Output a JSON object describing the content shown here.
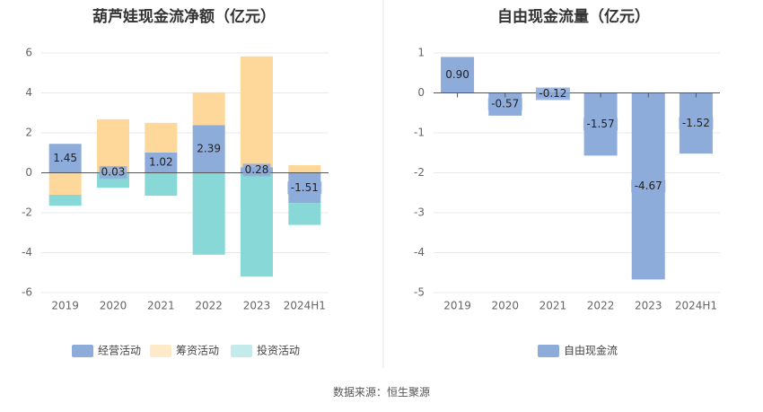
{
  "source_text": "数据来源：恒生聚源",
  "colors": {
    "operating": "#8eacda",
    "financing": "#fed89a",
    "investing": "#88d8d8",
    "free_cash": "#8eacda"
  },
  "chart_data": [
    {
      "type": "bar",
      "stacked": true,
      "title": "葫芦娃现金流净额（亿元）",
      "categories": [
        "2019",
        "2020",
        "2021",
        "2022",
        "2023",
        "2024H1"
      ],
      "ylim": [
        -6,
        6
      ],
      "yticks": [
        6,
        4,
        2,
        0,
        -2,
        -4,
        -6
      ],
      "grid": true,
      "legend_position": "bottom",
      "series": [
        {
          "name": "经营活动",
          "values": [
            1.45,
            0.03,
            1.02,
            2.39,
            0.28,
            -1.51
          ],
          "labels": [
            "1.45",
            "0.03",
            "1.02",
            "2.39",
            "0.28",
            "-1.51"
          ]
        },
        {
          "name": "筹资活动",
          "values": [
            -1.1,
            2.65,
            1.48,
            1.64,
            5.55,
            0.38
          ]
        },
        {
          "name": "投资活动",
          "values": [
            -0.55,
            -0.75,
            -1.15,
            -4.1,
            -5.2,
            -1.1
          ]
        }
      ]
    },
    {
      "type": "bar",
      "title": "自由现金流量（亿元）",
      "categories": [
        "2019",
        "2020",
        "2021",
        "2022",
        "2023",
        "2024H1"
      ],
      "ylim": [
        -5,
        1
      ],
      "yticks": [
        1,
        0,
        -1,
        -2,
        -3,
        -4,
        -5
      ],
      "grid": true,
      "legend_position": "bottom",
      "series": [
        {
          "name": "自由现金流",
          "values": [
            0.9,
            -0.57,
            -0.12,
            -1.57,
            -4.67,
            -1.52
          ],
          "labels": [
            "0.90",
            "-0.57",
            "-0.12",
            "-1.57",
            "-4.67",
            "-1.52"
          ]
        }
      ]
    }
  ]
}
